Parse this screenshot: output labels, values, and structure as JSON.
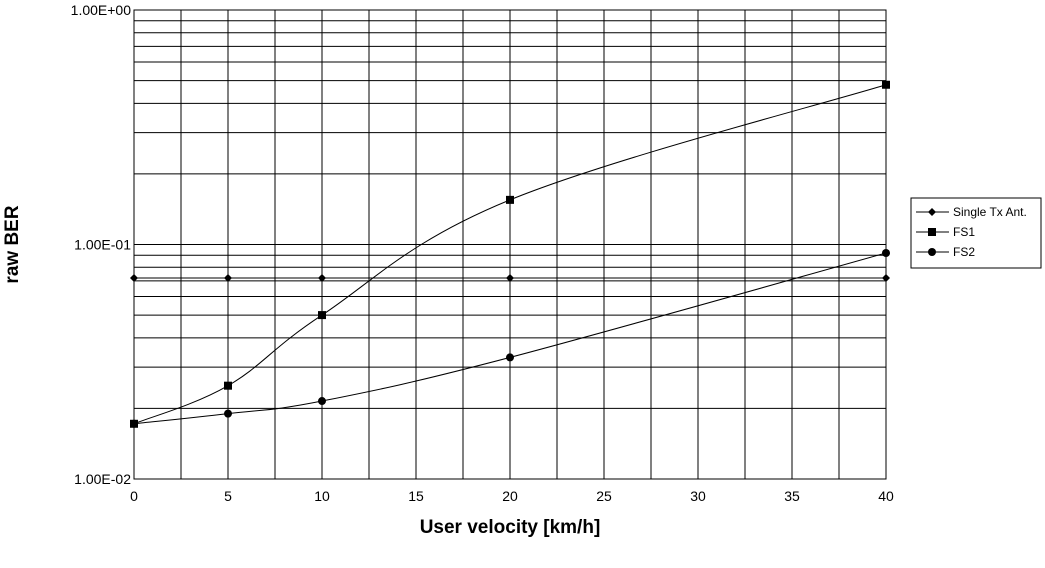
{
  "chart_data": {
    "type": "line",
    "xlabel": "User velocity  [km/h]",
    "ylabel": "raw BER",
    "xlim": [
      0,
      40
    ],
    "ylim": [
      0.01,
      1
    ],
    "y_scale": "log",
    "grid": true,
    "legend_position": "right",
    "x_ticks": [
      "0",
      "5",
      "10",
      "15",
      "20",
      "25",
      "30",
      "35",
      "40"
    ],
    "y_ticks": [
      "1.00E-02",
      "1.00E-01",
      "1.00E+00"
    ],
    "series": [
      {
        "name": "Single Tx Ant.",
        "marker": "diamond",
        "x": [
          0,
          5,
          10,
          20,
          40
        ],
        "values": [
          0.072,
          0.072,
          0.072,
          0.072,
          0.072
        ]
      },
      {
        "name": "FS1",
        "marker": "square",
        "x": [
          0,
          5,
          10,
          20,
          40
        ],
        "values": [
          0.0172,
          0.025,
          0.05,
          0.155,
          0.48
        ]
      },
      {
        "name": "FS2",
        "marker": "circle",
        "x": [
          0,
          5,
          10,
          20,
          40
        ],
        "values": [
          0.0172,
          0.019,
          0.0215,
          0.033,
          0.092
        ]
      }
    ]
  }
}
